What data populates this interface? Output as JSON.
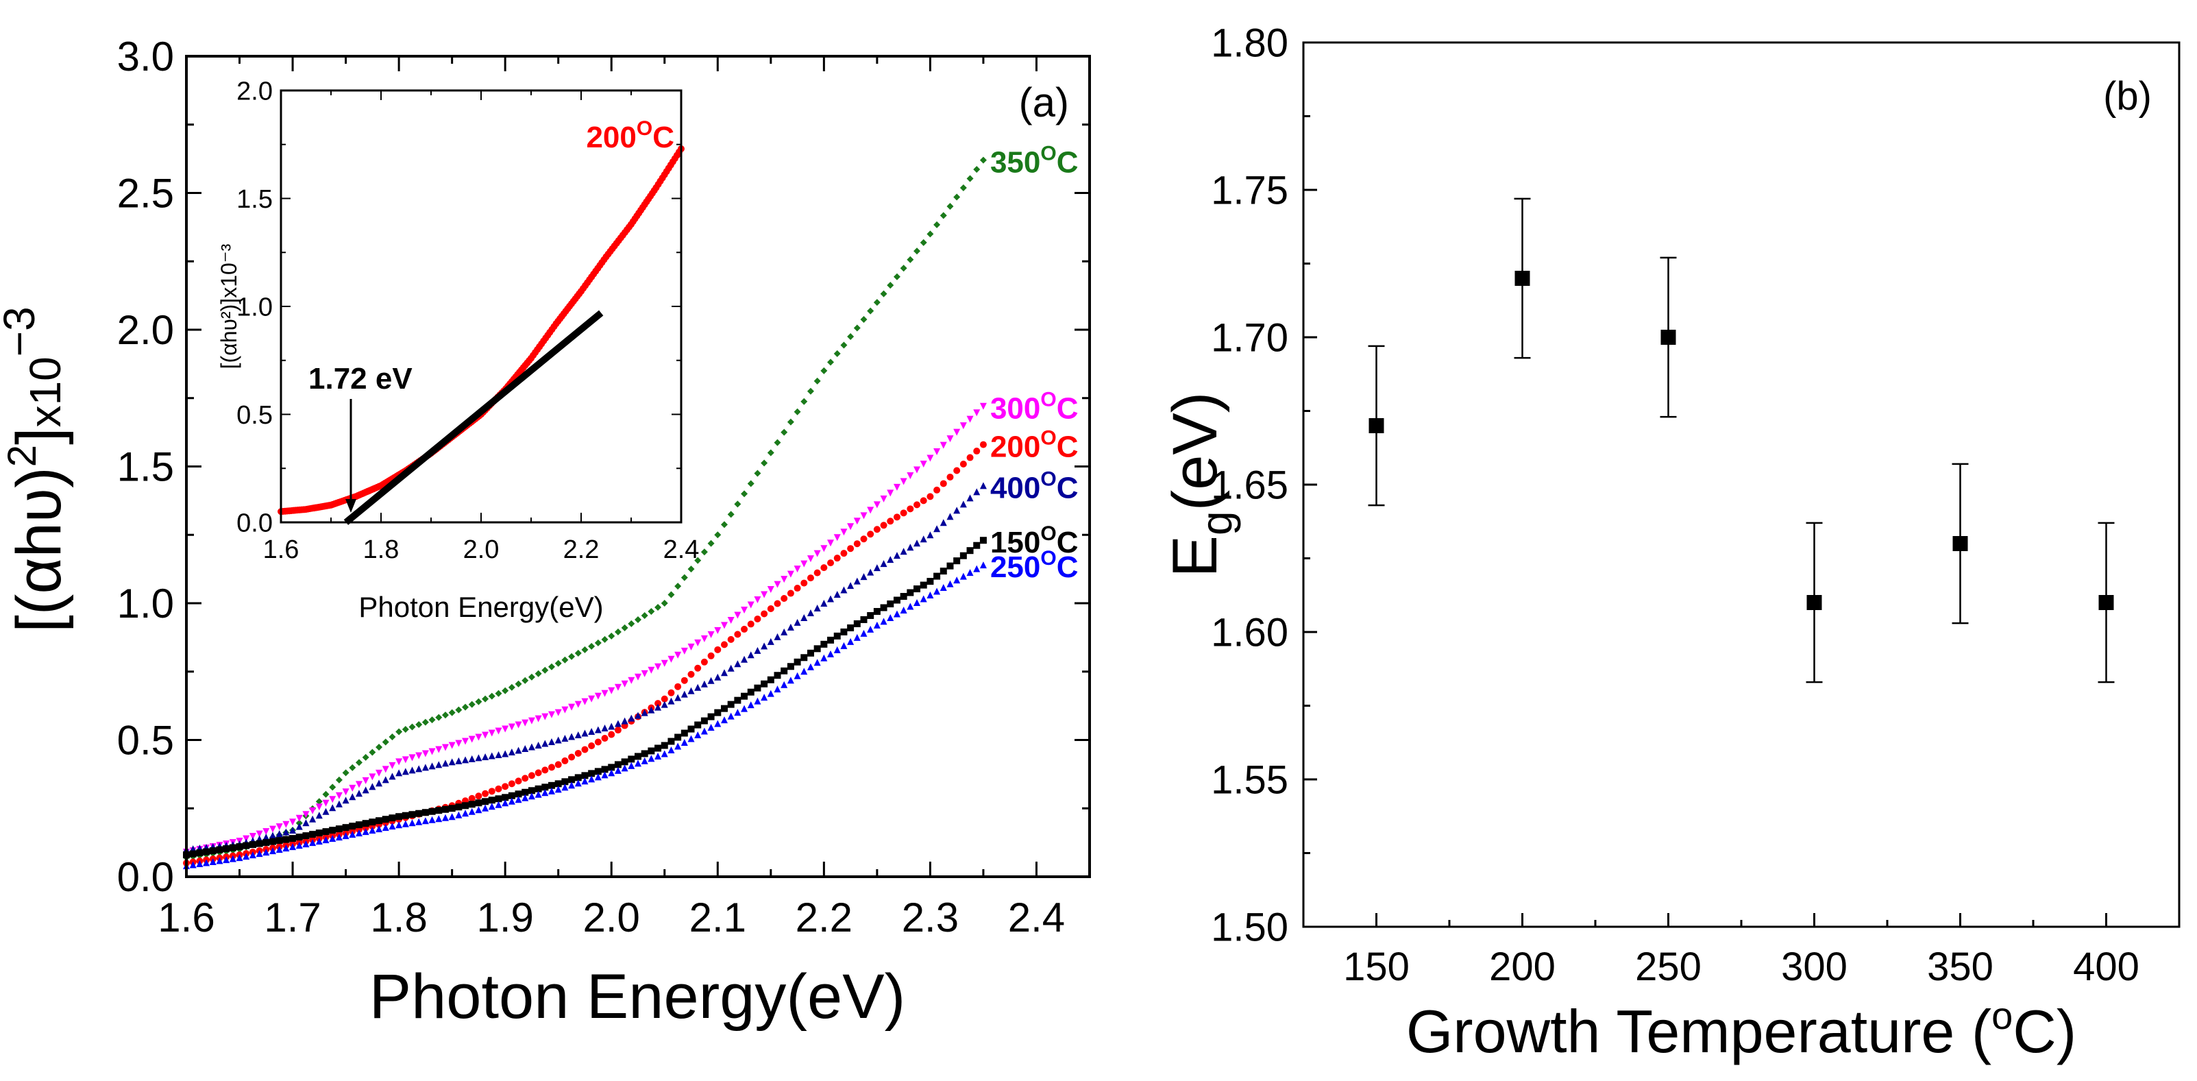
{
  "panel_a": {
    "label": "(a)",
    "xlabel": "Photon Energy(eV)",
    "ylabel_parts": [
      "[(",
      "αhυ",
      ")",
      "2",
      "]",
      "x10",
      "−3"
    ],
    "annotation": "1.72 eV",
    "inset": {
      "xlabel": "Photon Energy(eV)",
      "ylabel": "[(αhυ²)]x10⁻³"
    }
  },
  "panel_b": {
    "label": "(b)",
    "xlabel": "Growth Temperature (",
    "xlabel_sup": "o",
    "xlabel_tail": "C)",
    "ylabel": "E",
    "ylabel_sub": "g",
    "ylabel_tail": "(eV)"
  },
  "chart_data": [
    {
      "id": "a_main",
      "type": "scatter",
      "title": "",
      "xlabel": "Photon Energy(eV)",
      "ylabel": "[(αhυ)²]x10⁻³",
      "xlim": [
        1.6,
        2.45
      ],
      "ylim": [
        0.0,
        3.0
      ],
      "xticks": [
        1.6,
        1.7,
        1.8,
        1.9,
        2.0,
        2.1,
        2.2,
        2.3,
        2.4
      ],
      "yticks": [
        0.0,
        0.5,
        1.0,
        1.5,
        2.0,
        2.5,
        3.0
      ],
      "grid": false,
      "series": [
        {
          "name": "350",
          "label": "350",
          "color": "#1a7a1a",
          "marker": "diamond",
          "x": [
            1.6,
            1.65,
            1.7,
            1.75,
            1.8,
            1.85,
            1.9,
            1.95,
            2.0,
            2.05,
            2.1,
            2.15,
            2.2,
            2.25,
            2.3,
            2.35
          ],
          "y": [
            0.07,
            0.1,
            0.17,
            0.38,
            0.53,
            0.6,
            0.68,
            0.78,
            0.88,
            1.0,
            1.25,
            1.55,
            1.85,
            2.1,
            2.35,
            2.62
          ]
        },
        {
          "name": "300",
          "label": "300",
          "color": "#ff00ff",
          "marker": "triangle-down",
          "x": [
            1.6,
            1.65,
            1.7,
            1.75,
            1.8,
            1.85,
            1.9,
            1.95,
            2.0,
            2.05,
            2.1,
            2.15,
            2.2,
            2.25,
            2.3,
            2.35
          ],
          "y": [
            0.09,
            0.13,
            0.2,
            0.31,
            0.42,
            0.48,
            0.54,
            0.6,
            0.68,
            0.78,
            0.9,
            1.05,
            1.2,
            1.36,
            1.53,
            1.72
          ]
        },
        {
          "name": "200",
          "label": "200",
          "color": "#ff0000",
          "marker": "circle",
          "x": [
            1.6,
            1.65,
            1.7,
            1.75,
            1.8,
            1.85,
            1.9,
            1.95,
            2.0,
            2.05,
            2.1,
            2.15,
            2.2,
            2.25,
            2.3,
            2.35
          ],
          "y": [
            0.05,
            0.08,
            0.12,
            0.16,
            0.21,
            0.26,
            0.33,
            0.41,
            0.52,
            0.65,
            0.83,
            0.98,
            1.13,
            1.27,
            1.39,
            1.58
          ]
        },
        {
          "name": "400",
          "label": "400",
          "color": "#000099",
          "marker": "triangle",
          "x": [
            1.6,
            1.65,
            1.7,
            1.75,
            1.8,
            1.85,
            1.9,
            1.95,
            2.0,
            2.05,
            2.1,
            2.15,
            2.2,
            2.25,
            2.3,
            2.35
          ],
          "y": [
            0.1,
            0.12,
            0.17,
            0.28,
            0.38,
            0.42,
            0.45,
            0.5,
            0.55,
            0.63,
            0.73,
            0.86,
            1.0,
            1.13,
            1.25,
            1.43
          ]
        },
        {
          "name": "150",
          "label": "150",
          "color": "#000000",
          "marker": "square",
          "x": [
            1.6,
            1.65,
            1.7,
            1.75,
            1.8,
            1.85,
            1.9,
            1.95,
            2.0,
            2.05,
            2.1,
            2.15,
            2.2,
            2.25,
            2.3,
            2.35
          ],
          "y": [
            0.08,
            0.11,
            0.14,
            0.18,
            0.22,
            0.25,
            0.29,
            0.34,
            0.4,
            0.48,
            0.6,
            0.72,
            0.85,
            0.97,
            1.08,
            1.23
          ]
        },
        {
          "name": "250",
          "label": "250",
          "color": "#0000ff",
          "marker": "triangle",
          "x": [
            1.6,
            1.65,
            1.7,
            1.75,
            1.8,
            1.85,
            1.9,
            1.95,
            2.0,
            2.05,
            2.1,
            2.15,
            2.2,
            2.25,
            2.3,
            2.35
          ],
          "y": [
            0.04,
            0.07,
            0.11,
            0.15,
            0.19,
            0.22,
            0.27,
            0.32,
            0.38,
            0.45,
            0.56,
            0.67,
            0.8,
            0.92,
            1.03,
            1.14
          ]
        }
      ]
    },
    {
      "id": "a_inset",
      "type": "scatter",
      "title": "",
      "xlabel": "Photon Energy(eV)",
      "ylabel": "[(αhυ²)]x10⁻³",
      "xlim": [
        1.6,
        2.4
      ],
      "ylim": [
        0.0,
        2.0
      ],
      "xticks": [
        1.6,
        1.8,
        2.0,
        2.2,
        2.4
      ],
      "yticks": [
        0.0,
        0.5,
        1.0,
        1.5,
        2.0
      ],
      "grid": false,
      "series": [
        {
          "name": "200",
          "label": "200",
          "color": "#ff0000",
          "marker": "circle",
          "x": [
            1.6,
            1.65,
            1.7,
            1.75,
            1.8,
            1.85,
            1.9,
            1.95,
            2.0,
            2.05,
            2.1,
            2.15,
            2.2,
            2.25,
            2.3,
            2.35,
            2.4
          ],
          "y": [
            0.05,
            0.06,
            0.08,
            0.12,
            0.17,
            0.24,
            0.32,
            0.41,
            0.5,
            0.62,
            0.76,
            0.92,
            1.07,
            1.23,
            1.38,
            1.55,
            1.73
          ]
        }
      ],
      "fit_line": {
        "x": [
          1.73,
          2.24
        ],
        "y": [
          0.0,
          0.97
        ],
        "color": "#000000"
      },
      "annotation": {
        "text": "1.72 eV",
        "x": 1.72,
        "y": 0.0
      }
    },
    {
      "id": "b",
      "type": "scatter",
      "title": "",
      "xlabel": "Growth Temperature (°C)",
      "ylabel": "Eg(eV)",
      "xlim": [
        125,
        425
      ],
      "ylim": [
        1.5,
        1.8
      ],
      "xticks": [
        150,
        200,
        250,
        300,
        350,
        400
      ],
      "yticks": [
        1.5,
        1.55,
        1.6,
        1.65,
        1.7,
        1.75,
        1.8
      ],
      "grid": false,
      "series": [
        {
          "name": "Eg",
          "color": "#000000",
          "marker": "square",
          "x": [
            150,
            200,
            250,
            300,
            350,
            400
          ],
          "y": [
            1.67,
            1.72,
            1.7,
            1.61,
            1.63,
            1.61
          ],
          "error": [
            0.027,
            0.027,
            0.027,
            0.027,
            0.027,
            0.027
          ]
        }
      ]
    }
  ]
}
